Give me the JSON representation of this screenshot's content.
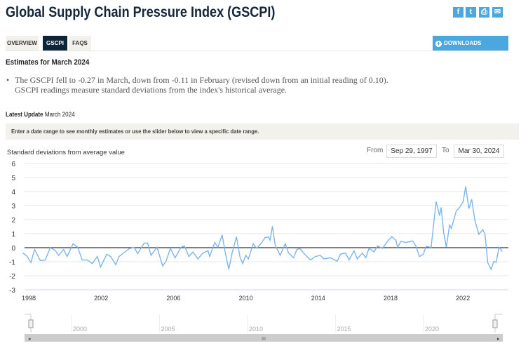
{
  "header": {
    "title": "Global Supply Chain Pressure Index (GSCPI)",
    "social": [
      {
        "icon": "facebook-icon",
        "glyph": "f"
      },
      {
        "icon": "twitter-icon",
        "glyph": "t"
      },
      {
        "icon": "print-icon",
        "glyph": "⎙"
      },
      {
        "icon": "email-icon",
        "glyph": "✉"
      }
    ]
  },
  "tabs": [
    {
      "label": "OVERVIEW",
      "active": false
    },
    {
      "label": "GSCPI",
      "active": true
    },
    {
      "label": "FAQS",
      "active": false
    }
  ],
  "downloads_label": "DOWNLOADS",
  "estimates": {
    "heading": "Estimates for March 2024",
    "line1": "The GSCPI fell to -0.27 in March, down from -0.11 in February (revised down from an initial reading of 0.10).",
    "line2": "GSCPI readings measure standard deviations from the index's historical average."
  },
  "latest_update": {
    "label": "Latest Update",
    "value": "March 2024"
  },
  "instructions": "Enter a date range to see monthly estimates or use the slider below to view a specific date range.",
  "range": {
    "from_label": "From",
    "from_value": "Sep 29, 1997",
    "to_label": "To",
    "to_value": "Mar 30, 2024"
  },
  "colors": {
    "accent": "#4aa8df",
    "line": "#7cb5ec",
    "tab_active": "#0d2538"
  },
  "chart_data": {
    "type": "line",
    "ylabel": "Standard deviations from average value",
    "ylim": [
      -3,
      6
    ],
    "yticks": [
      "6",
      "5",
      "4",
      "3",
      "2",
      "1",
      "0",
      "-1",
      "-2",
      "-3"
    ],
    "xlim": [
      1997.67,
      2024.17
    ],
    "xticks": [
      "1998",
      "2002",
      "2006",
      "2010",
      "2014",
      "2018",
      "2022"
    ],
    "navigator_ticks": [
      "2000",
      "2005",
      "2010",
      "2015",
      "2020"
    ],
    "grid": true,
    "series": [
      {
        "points": [
          [
            1997.67,
            -0.38
          ],
          [
            1997.9,
            -0.6
          ],
          [
            1998.12,
            -1.05
          ],
          [
            1998.32,
            -0.13
          ],
          [
            1998.64,
            -0.92
          ],
          [
            1998.91,
            -0.88
          ],
          [
            1999.19,
            0
          ],
          [
            1999.47,
            -0.2
          ],
          [
            1999.65,
            -0.55
          ],
          [
            1999.93,
            -0.13
          ],
          [
            2000.12,
            -0.63
          ],
          [
            2000.45,
            0.28
          ],
          [
            2000.71,
            0.03
          ],
          [
            2000.95,
            -0.88
          ],
          [
            2001.23,
            -0.88
          ],
          [
            2001.51,
            -1.13
          ],
          [
            2001.79,
            -0.63
          ],
          [
            2001.97,
            -1.38
          ],
          [
            2002.31,
            -0.47
          ],
          [
            2002.53,
            -0.63
          ],
          [
            2002.81,
            -1.22
          ],
          [
            2002.99,
            -0.63
          ],
          [
            2003.27,
            -0.35
          ],
          [
            2003.55,
            -0.08
          ],
          [
            2003.83,
            0.03
          ],
          [
            2004.02,
            -0.43
          ],
          [
            2004.38,
            0.33
          ],
          [
            2004.57,
            0.33
          ],
          [
            2004.76,
            -0.55
          ],
          [
            2004.94,
            -0.22
          ],
          [
            2005.09,
            0.03
          ],
          [
            2005.4,
            -1.3
          ],
          [
            2005.59,
            -0.97
          ],
          [
            2005.83,
            -0.05
          ],
          [
            2006.09,
            -0.72
          ],
          [
            2006.42,
            0.03
          ],
          [
            2006.61,
            0.12
          ],
          [
            2006.85,
            -0.63
          ],
          [
            2007.07,
            -0.3
          ],
          [
            2007.35,
            -0.8
          ],
          [
            2007.63,
            -0.38
          ],
          [
            2007.91,
            -0.22
          ],
          [
            2008.0,
            -0.63
          ],
          [
            2008.28,
            0.37
          ],
          [
            2008.46,
            0.03
          ],
          [
            2008.69,
            0.92
          ],
          [
            2008.87,
            -0.38
          ],
          [
            2009.06,
            -1.55
          ],
          [
            2009.24,
            -0.38
          ],
          [
            2009.48,
            0.78
          ],
          [
            2009.67,
            -0.63
          ],
          [
            2009.82,
            -1.13
          ],
          [
            2010.0,
            -0.55
          ],
          [
            2010.14,
            -0.8
          ],
          [
            2010.41,
            0.28
          ],
          [
            2010.6,
            -0.05
          ],
          [
            2010.88,
            0.37
          ],
          [
            2011.06,
            0.7
          ],
          [
            2011.25,
            0.78
          ],
          [
            2011.34,
            0.53
          ],
          [
            2011.47,
            1.53
          ],
          [
            2011.62,
            0.2
          ],
          [
            2011.9,
            -0.55
          ],
          [
            2012.18,
            0.28
          ],
          [
            2012.36,
            -0.38
          ],
          [
            2012.64,
            -0.72
          ],
          [
            2012.82,
            -0.13
          ],
          [
            2012.98,
            -0.05
          ],
          [
            2013.19,
            -0.38
          ],
          [
            2013.57,
            -0.88
          ],
          [
            2013.84,
            -0.63
          ],
          [
            2014.12,
            -0.55
          ],
          [
            2014.31,
            -0.8
          ],
          [
            2014.68,
            -0.72
          ],
          [
            2015.05,
            -0.97
          ],
          [
            2015.23,
            -0.47
          ],
          [
            2015.51,
            -0.38
          ],
          [
            2015.7,
            -0.88
          ],
          [
            2015.98,
            -0.22
          ],
          [
            2016.16,
            -0.8
          ],
          [
            2016.44,
            -0.38
          ],
          [
            2016.63,
            -0.72
          ],
          [
            2016.81,
            -0.05
          ],
          [
            2017.09,
            -0.3
          ],
          [
            2017.28,
            0.12
          ],
          [
            2017.55,
            -0.05
          ],
          [
            2017.83,
            0.45
          ],
          [
            2018.07,
            0.78
          ],
          [
            2018.29,
            0.53
          ],
          [
            2018.39,
            0.03
          ],
          [
            2018.57,
            0.45
          ],
          [
            2018.85,
            0.37
          ],
          [
            2019.22,
            0.48
          ],
          [
            2019.4,
            0.12
          ],
          [
            2019.59,
            -0.63
          ],
          [
            2019.81,
            -0.47
          ],
          [
            2019.96,
            0.08
          ],
          [
            2020.24,
            0.03
          ],
          [
            2020.52,
            3.28
          ],
          [
            2020.71,
            2.28
          ],
          [
            2020.8,
            2.87
          ],
          [
            2020.93,
            1.12
          ],
          [
            2021.08,
            0.03
          ],
          [
            2021.26,
            1.62
          ],
          [
            2021.36,
            1.37
          ],
          [
            2021.63,
            2.62
          ],
          [
            2021.82,
            2.87
          ],
          [
            2022.01,
            3.28
          ],
          [
            2022.15,
            4.37
          ],
          [
            2022.33,
            2.78
          ],
          [
            2022.48,
            3.45
          ],
          [
            2022.66,
            1.95
          ],
          [
            2022.88,
            0.95
          ],
          [
            2023.1,
            1.28
          ],
          [
            2023.22,
            0.95
          ],
          [
            2023.37,
            -1.05
          ],
          [
            2023.56,
            -1.55
          ],
          [
            2023.71,
            -0.97
          ],
          [
            2023.83,
            -1.05
          ],
          [
            2024.0,
            0.03
          ],
          [
            2024.08,
            -0.11
          ],
          [
            2024.17,
            -0.27
          ]
        ]
      }
    ]
  }
}
